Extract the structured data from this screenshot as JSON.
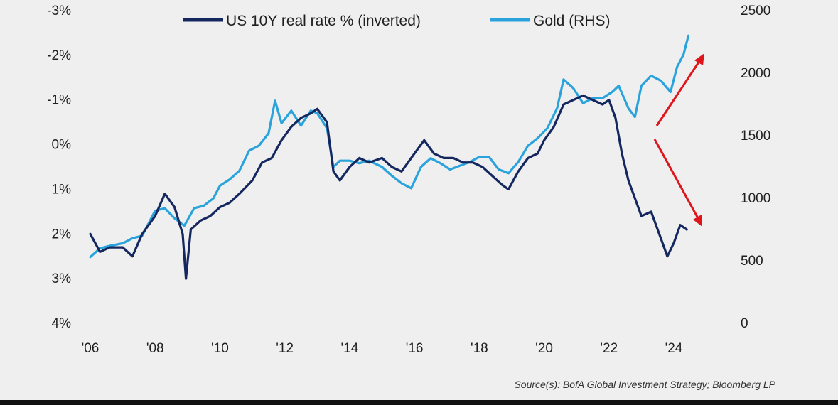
{
  "chart_data": {
    "type": "line",
    "legend": [
      {
        "label": "US 10Y real rate % (inverted)",
        "color": "#14275f"
      },
      {
        "label": "Gold (RHS)",
        "color": "#2aa3dc"
      }
    ],
    "x_tick_labels": [
      "'06",
      "'08",
      "'10",
      "'12",
      "'14",
      "'16",
      "'18",
      "'20",
      "'22",
      "'24"
    ],
    "x_tick_years": [
      2006,
      2008,
      2010,
      2012,
      2014,
      2016,
      2018,
      2020,
      2022,
      2024
    ],
    "y_left": {
      "tick_labels": [
        "-3%",
        "-2%",
        "-1%",
        "0%",
        "1%",
        "2%",
        "3%",
        "4%"
      ],
      "ticks": [
        -3,
        -2,
        -1,
        0,
        1,
        2,
        3,
        4
      ],
      "inverted": true,
      "range": [
        -3,
        4
      ]
    },
    "y_right": {
      "tick_labels": [
        "2500",
        "2000",
        "1500",
        "1000",
        "500",
        "0"
      ],
      "ticks": [
        2500,
        2000,
        1500,
        1000,
        500,
        0
      ],
      "range": [
        0,
        2500
      ]
    },
    "series": [
      {
        "name": "US 10Y real rate % (inverted)",
        "axis": "left",
        "color": "#14275f",
        "x": [
          2006.0,
          2006.3,
          2006.6,
          2007.0,
          2007.3,
          2007.6,
          2008.0,
          2008.3,
          2008.6,
          2008.85,
          2008.95,
          2009.1,
          2009.4,
          2009.7,
          2010.0,
          2010.3,
          2010.6,
          2011.0,
          2011.3,
          2011.6,
          2011.9,
          2012.2,
          2012.5,
          2012.8,
          2013.0,
          2013.3,
          2013.5,
          2013.7,
          2014.0,
          2014.3,
          2014.6,
          2015.0,
          2015.3,
          2015.6,
          2016.0,
          2016.3,
          2016.6,
          2016.9,
          2017.2,
          2017.5,
          2017.8,
          2018.1,
          2018.4,
          2018.7,
          2018.9,
          2019.2,
          2019.5,
          2019.8,
          2020.0,
          2020.3,
          2020.6,
          2020.9,
          2021.2,
          2021.5,
          2021.8,
          2022.0,
          2022.2,
          2022.4,
          2022.6,
          2022.8,
          2023.0,
          2023.3,
          2023.6,
          2023.8,
          2024.0,
          2024.2,
          2024.4
        ],
        "y": [
          2.0,
          2.4,
          2.3,
          2.3,
          2.5,
          2.0,
          1.6,
          1.1,
          1.4,
          2.0,
          3.0,
          1.9,
          1.7,
          1.6,
          1.4,
          1.3,
          1.1,
          0.8,
          0.4,
          0.3,
          -0.1,
          -0.4,
          -0.6,
          -0.7,
          -0.8,
          -0.5,
          0.6,
          0.8,
          0.5,
          0.3,
          0.4,
          0.3,
          0.5,
          0.6,
          0.2,
          -0.1,
          0.2,
          0.3,
          0.3,
          0.4,
          0.4,
          0.5,
          0.7,
          0.9,
          1.0,
          0.6,
          0.3,
          0.2,
          -0.1,
          -0.4,
          -0.9,
          -1.0,
          -1.1,
          -1.0,
          -0.9,
          -1.0,
          -0.6,
          0.2,
          0.8,
          1.2,
          1.6,
          1.5,
          2.1,
          2.5,
          2.2,
          1.8,
          1.9
        ]
      },
      {
        "name": "Gold (RHS)",
        "axis": "right",
        "color": "#2aa3dc",
        "x": [
          2006.0,
          2006.3,
          2006.6,
          2007.0,
          2007.3,
          2007.6,
          2008.0,
          2008.3,
          2008.6,
          2008.9,
          2009.2,
          2009.5,
          2009.8,
          2010.0,
          2010.3,
          2010.6,
          2010.9,
          2011.2,
          2011.5,
          2011.7,
          2011.9,
          2012.2,
          2012.5,
          2012.8,
          2013.0,
          2013.3,
          2013.5,
          2013.7,
          2014.0,
          2014.3,
          2014.6,
          2015.0,
          2015.3,
          2015.6,
          2015.9,
          2016.2,
          2016.5,
          2016.8,
          2017.1,
          2017.4,
          2017.7,
          2018.0,
          2018.3,
          2018.6,
          2018.9,
          2019.2,
          2019.5,
          2019.8,
          2020.1,
          2020.4,
          2020.6,
          2020.9,
          2021.2,
          2021.5,
          2021.8,
          2022.1,
          2022.3,
          2022.6,
          2022.8,
          2023.0,
          2023.3,
          2023.6,
          2023.9,
          2024.1,
          2024.3,
          2024.45
        ],
        "y": [
          530,
          600,
          620,
          640,
          680,
          700,
          900,
          920,
          840,
          780,
          920,
          940,
          1000,
          1100,
          1150,
          1220,
          1380,
          1420,
          1520,
          1780,
          1600,
          1700,
          1580,
          1700,
          1680,
          1560,
          1250,
          1300,
          1300,
          1280,
          1300,
          1250,
          1180,
          1120,
          1080,
          1250,
          1320,
          1280,
          1230,
          1260,
          1290,
          1330,
          1330,
          1230,
          1200,
          1290,
          1420,
          1480,
          1560,
          1720,
          1950,
          1880,
          1760,
          1800,
          1800,
          1850,
          1900,
          1720,
          1650,
          1900,
          1980,
          1940,
          1850,
          2050,
          2150,
          2300
        ]
      }
    ],
    "annotations": [
      {
        "type": "arrow",
        "color": "#e0141b",
        "direction": "up-right"
      },
      {
        "type": "arrow",
        "color": "#e0141b",
        "direction": "down-right"
      }
    ],
    "grid": false
  },
  "legend": {
    "rate_label": "US 10Y real rate % (inverted)",
    "gold_label": "Gold (RHS)"
  },
  "source": "Source(s): BofA Global Investment Strategy; Bloomberg LP"
}
